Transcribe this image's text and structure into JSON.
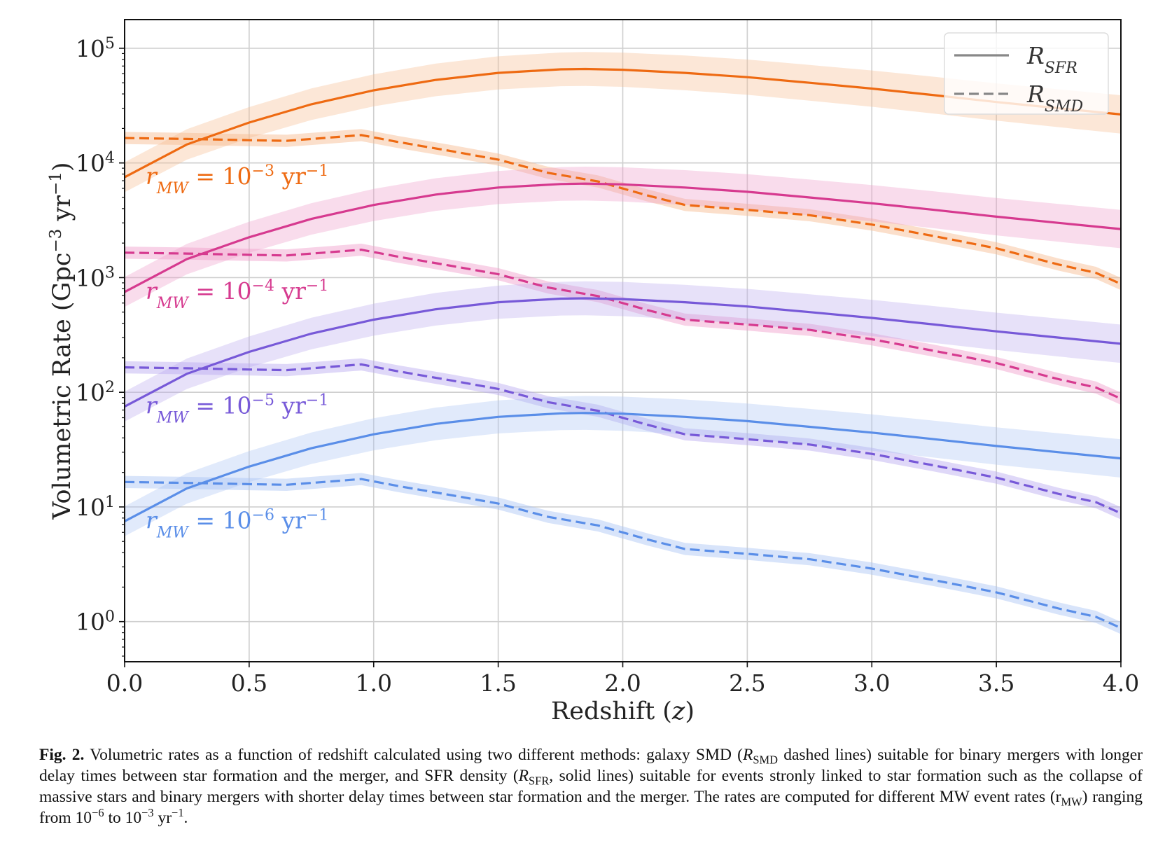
{
  "chart_data": {
    "type": "line",
    "x_label_prefix": "Redshift (",
    "x_label_var": "z",
    "x_label_suffix": ")",
    "y_label_prefix": "Volumetric Rate (Gpc",
    "y_label_exp": "−3",
    "y_label_mid": " yr",
    "y_label_exp2": "−1",
    "y_label_suffix": ")",
    "xlim": [
      0.0,
      4.0
    ],
    "ylim_log10": [
      -0.35,
      5.25
    ],
    "y_scale": "log",
    "grid": true,
    "legend_position": "top-right",
    "x_ticks": [
      "0.0",
      "0.5",
      "1.0",
      "1.5",
      "2.0",
      "2.5",
      "3.0",
      "3.5",
      "4.0"
    ],
    "x_tick_values": [
      0,
      0.5,
      1.0,
      1.5,
      2.0,
      2.5,
      3.0,
      3.5,
      4.0
    ],
    "y_ticks": [
      {
        "base": "10",
        "exp": "0",
        "value": 1
      },
      {
        "base": "10",
        "exp": "1",
        "value": 10
      },
      {
        "base": "10",
        "exp": "2",
        "value": 100
      },
      {
        "base": "10",
        "exp": "3",
        "value": 1000
      },
      {
        "base": "10",
        "exp": "4",
        "value": 10000
      },
      {
        "base": "10",
        "exp": "5",
        "value": 100000
      }
    ],
    "legend": [
      {
        "symbol": "R",
        "sub": "SFR",
        "style": "solid"
      },
      {
        "symbol": "R",
        "sub": "SMD",
        "style": "dashed"
      }
    ],
    "sfr_shape": {
      "x": [
        0.0,
        0.25,
        0.5,
        0.75,
        1.0,
        1.25,
        1.5,
        1.75,
        1.85,
        2.0,
        2.25,
        2.5,
        2.75,
        3.0,
        3.25,
        3.5,
        3.75,
        4.0
      ],
      "y": [
        7.5,
        14.5,
        22.5,
        32.5,
        43,
        53,
        61,
        65.5,
        66,
        65,
        61,
        56,
        50,
        44.5,
        39,
        34,
        30,
        26.5
      ]
    },
    "smd_shape": {
      "x": [
        0.0,
        0.25,
        0.5,
        0.65,
        0.8,
        0.95,
        1.1,
        1.3,
        1.5,
        1.7,
        1.9,
        2.1,
        2.25,
        2.5,
        2.75,
        3.0,
        3.25,
        3.5,
        3.75,
        3.9,
        4.0
      ],
      "y": [
        16.5,
        16.2,
        15.8,
        15.6,
        16.5,
        17.5,
        15.2,
        12.8,
        10.7,
        8.2,
        6.9,
        5.2,
        4.3,
        3.9,
        3.5,
        2.9,
        2.3,
        1.8,
        1.3,
        1.1,
        0.88
      ]
    },
    "series": [
      {
        "name_base": "10",
        "name_exp": "−3",
        "scale": 1000,
        "color": "#ee6a12",
        "band_color": "#f7b98b"
      },
      {
        "name_base": "10",
        "name_exp": "−4",
        "scale": 100,
        "color": "#d63a8f",
        "band_color": "#ef9cc9"
      },
      {
        "name_base": "10",
        "name_exp": "−5",
        "scale": 10,
        "color": "#7759d8",
        "band_color": "#b9a9ef"
      },
      {
        "name_base": "10",
        "name_exp": "−6",
        "scale": 1,
        "color": "#5a8ee8",
        "band_color": "#a9c4f4"
      }
    ],
    "series_label_var": "r",
    "series_label_sub": "MW",
    "series_label_eq": " = ",
    "series_label_unit": " yr",
    "series_label_unit_exp": "−1"
  },
  "caption": {
    "label": "Fig. 2.",
    "t1": " Volumetric rates as a function of redshift calculated using two different methods: galaxy SMD (",
    "r1": "R",
    "r1_sub": "SMD",
    "t2": " dashed lines) suitable for binary mergers with longer delay times between star formation and the merger, and SFR density (",
    "r2": "R",
    "r2_sub": "SFR",
    "t3": ", solid lines) suitable for events stronly linked to star formation such as the collapse of massive stars and binary mergers with shorter delay times between star formation and the merger. The rates are computed for different MW event rates (r",
    "r3_sub": "MW",
    "t4": ") ranging from 10",
    "e1": "−6",
    "t5": " to 10",
    "e2": "−3",
    "t6": " yr",
    "e3": "−1",
    "t7": "."
  }
}
